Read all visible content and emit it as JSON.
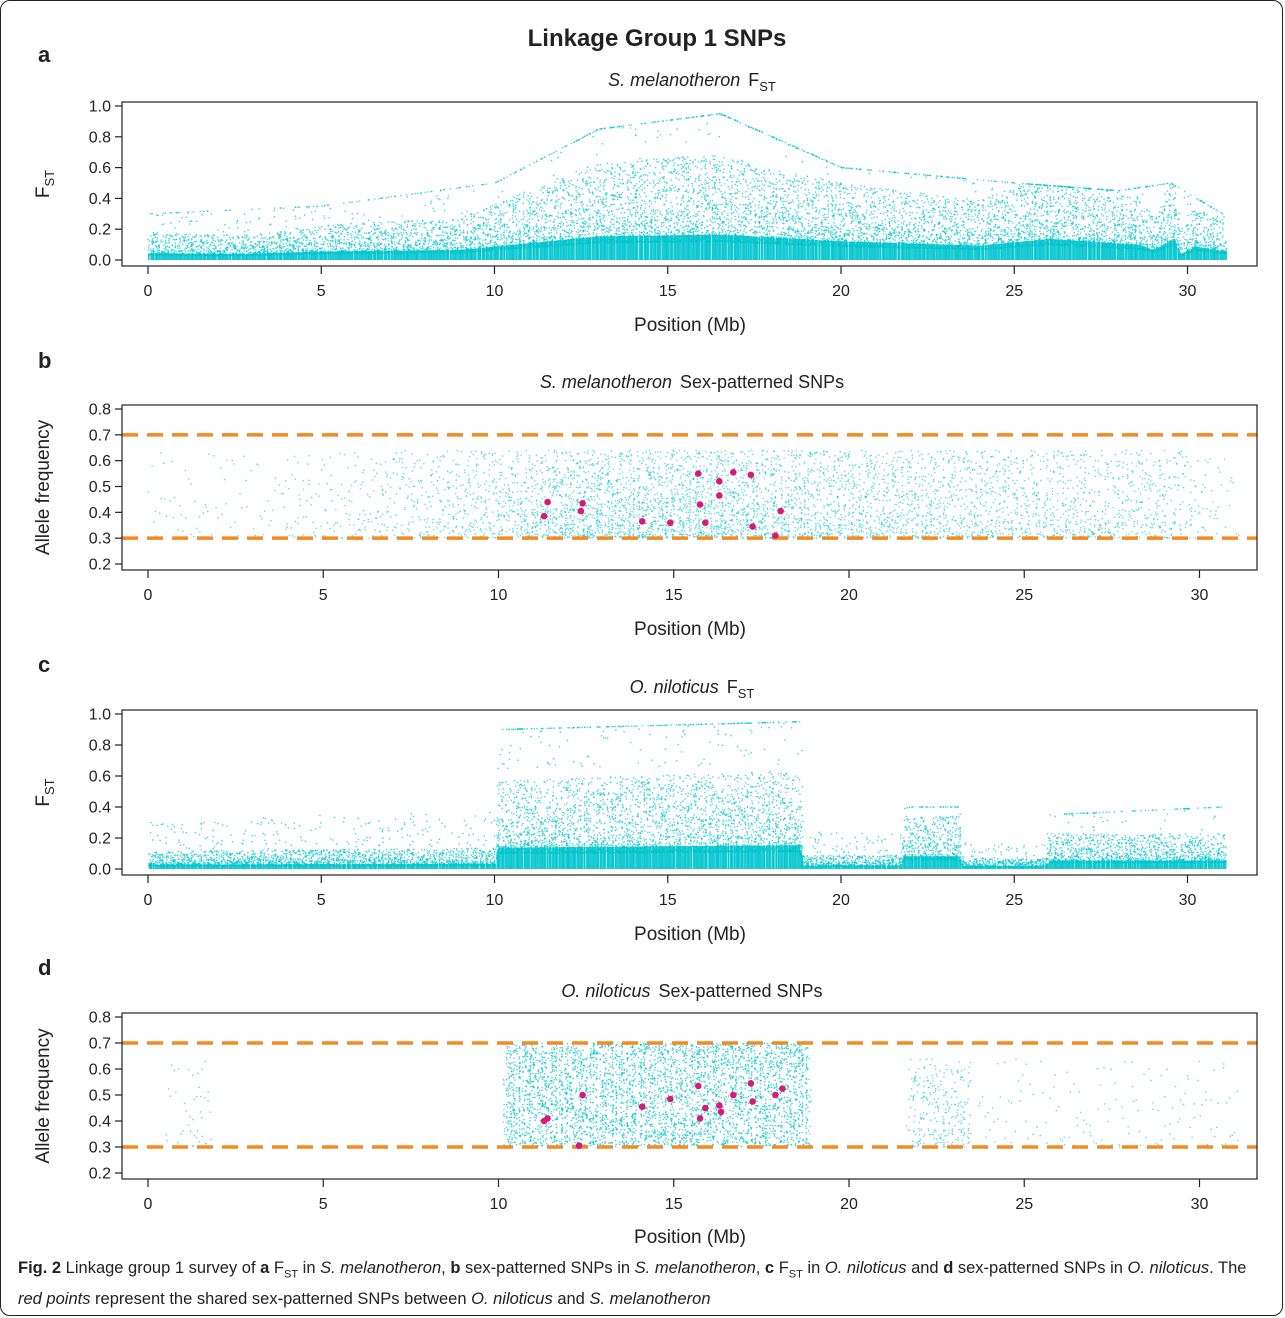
{
  "figure_title": "Linkage Group 1 SNPs",
  "caption": {
    "label": "Fig. 2",
    "parts": [
      {
        "t": " Linkage group 1 survey of "
      },
      {
        "t": "a",
        "b": true
      },
      {
        "t": " F"
      },
      {
        "t": "ST",
        "sub": true
      },
      {
        "t": " in "
      },
      {
        "t": "S. melanotheron",
        "i": true
      },
      {
        "t": ", "
      },
      {
        "t": "b",
        "b": true
      },
      {
        "t": " sex-patterned SNPs in "
      },
      {
        "t": "S. melanotheron",
        "i": true
      },
      {
        "t": ", "
      },
      {
        "t": "c",
        "b": true
      },
      {
        "t": " F"
      },
      {
        "t": "ST",
        "sub": true
      },
      {
        "t": " in "
      },
      {
        "t": "O. niloticus",
        "i": true
      },
      {
        "t": " and "
      },
      {
        "t": "d",
        "b": true
      },
      {
        "t": " sex-patterned SNPs in "
      },
      {
        "t": "O. niloticus",
        "i": true
      },
      {
        "t": ". The "
      },
      {
        "t": "red points",
        "i": true
      },
      {
        "t": " represent the shared sex-patterned SNPs between "
      },
      {
        "t": "O. niloticus",
        "i": true
      },
      {
        "t": " and "
      },
      {
        "t": "S. melanotheron",
        "i": true
      }
    ]
  },
  "colors": {
    "points": "#00c5cd",
    "shared": "#d6197a",
    "threshold": "#f58a1f",
    "axis": "#222222"
  },
  "chart_data": [
    {
      "panel": "a",
      "type": "scatter",
      "title_species": "S. melanotheron",
      "title_stat": "F",
      "title_stat_sub": "ST",
      "xlabel": "Position (Mb)",
      "ylabel": "F",
      "ylabel_sub": "ST",
      "xlim": [
        0,
        31.2
      ],
      "ylim": [
        0,
        1.0
      ],
      "xticks": [
        0,
        5,
        10,
        15,
        20,
        25,
        30
      ],
      "yticks": [
        0.0,
        0.2,
        0.4,
        0.6,
        0.8,
        1.0
      ],
      "ytick_labels": [
        "0.0",
        "0.2",
        "0.4",
        "0.6",
        "0.8",
        "1.0"
      ],
      "dense_points": {
        "profile": [
          [
            0,
            0.08
          ],
          [
            2.7,
            0.07
          ],
          [
            5,
            0.1
          ],
          [
            9,
            0.12
          ],
          [
            11,
            0.2
          ],
          [
            13,
            0.28
          ],
          [
            16.5,
            0.3
          ],
          [
            20,
            0.22
          ],
          [
            24,
            0.17
          ],
          [
            26,
            0.25
          ],
          [
            28.6,
            0.18
          ],
          [
            29,
            0.12
          ],
          [
            29.6,
            0.25
          ],
          [
            29.8,
            0.06
          ],
          [
            30.2,
            0.16
          ],
          [
            31.1,
            0.1
          ]
        ],
        "max_extent": [
          [
            0,
            0.3
          ],
          [
            5,
            0.35
          ],
          [
            10,
            0.5
          ],
          [
            13,
            0.85
          ],
          [
            16.5,
            0.95
          ],
          [
            20,
            0.6
          ],
          [
            25,
            0.5
          ],
          [
            28,
            0.45
          ],
          [
            29.5,
            0.5
          ],
          [
            31,
            0.3
          ]
        ]
      }
    },
    {
      "panel": "b",
      "type": "scatter",
      "title_species": "S. melanotheron",
      "title_stat": "Sex-patterned SNPs",
      "xlabel": "Position (Mb)",
      "ylabel": "Allele frequency",
      "xlim": [
        0,
        31.2
      ],
      "ylim": [
        0.2,
        0.8
      ],
      "xticks": [
        0,
        5,
        10,
        15,
        20,
        25,
        30
      ],
      "yticks": [
        0.2,
        0.3,
        0.4,
        0.5,
        0.6,
        0.7,
        0.8
      ],
      "ytick_labels": [
        "0.2",
        "0.3",
        "0.4",
        "0.5",
        "0.6",
        "0.7",
        "0.8"
      ],
      "thresholds": [
        0.3,
        0.7
      ],
      "dense_points": {
        "density_by_position": [
          [
            0,
            0.03
          ],
          [
            5,
            0.08
          ],
          [
            7,
            0.18
          ],
          [
            10,
            0.35
          ],
          [
            12,
            0.7
          ],
          [
            16,
            0.75
          ],
          [
            19,
            0.55
          ],
          [
            24,
            0.4
          ],
          [
            29,
            0.3
          ],
          [
            30.3,
            0.08
          ],
          [
            31,
            0.05
          ]
        ],
        "value_range": [
          0.3,
          0.7
        ]
      },
      "shared_points": [
        [
          11.4,
          0.44
        ],
        [
          11.3,
          0.385
        ],
        [
          12.4,
          0.435
        ],
        [
          12.35,
          0.405
        ],
        [
          14.1,
          0.365
        ],
        [
          14.9,
          0.36
        ],
        [
          15.7,
          0.55
        ],
        [
          15.75,
          0.43
        ],
        [
          15.9,
          0.36
        ],
        [
          16.3,
          0.52
        ],
        [
          16.3,
          0.465
        ],
        [
          16.7,
          0.555
        ],
        [
          17.2,
          0.545
        ],
        [
          17.25,
          0.345
        ],
        [
          17.9,
          0.31
        ],
        [
          18.05,
          0.405
        ]
      ]
    },
    {
      "panel": "c",
      "type": "scatter",
      "title_species": "O. niloticus",
      "title_stat": "F",
      "title_stat_sub": "ST",
      "xlabel": "Position (Mb)",
      "ylabel": "F",
      "ylabel_sub": "ST",
      "xlim": [
        0,
        31.2
      ],
      "ylim": [
        0,
        1.0
      ],
      "xticks": [
        0,
        5,
        10,
        15,
        20,
        25,
        30
      ],
      "yticks": [
        0.0,
        0.2,
        0.4,
        0.6,
        0.8,
        1.0
      ],
      "ytick_labels": [
        "0.0",
        "0.2",
        "0.4",
        "0.6",
        "0.8",
        "1.0"
      ],
      "dense_points": {
        "profile": [
          [
            0,
            0.05
          ],
          [
            10,
            0.06
          ],
          [
            10.1,
            0.25
          ],
          [
            18.8,
            0.28
          ],
          [
            18.9,
            0.04
          ],
          [
            21.7,
            0.04
          ],
          [
            21.8,
            0.15
          ],
          [
            23.4,
            0.15
          ],
          [
            23.5,
            0.03
          ],
          [
            25.9,
            0.03
          ],
          [
            26,
            0.1
          ],
          [
            31.1,
            0.1
          ]
        ],
        "max_extent": [
          [
            0,
            0.3
          ],
          [
            10,
            0.4
          ],
          [
            10.2,
            0.9
          ],
          [
            18.8,
            0.95
          ],
          [
            19,
            0.25
          ],
          [
            22,
            0.4
          ],
          [
            23.5,
            0.4
          ],
          [
            24,
            0.1
          ],
          [
            26,
            0.35
          ],
          [
            31,
            0.4
          ]
        ]
      }
    },
    {
      "panel": "d",
      "type": "scatter",
      "title_species": "O. niloticus",
      "title_stat": "Sex-patterned SNPs",
      "xlabel": "Position (Mb)",
      "ylabel": "Allele frequency",
      "xlim": [
        0,
        31.2
      ],
      "ylim": [
        0.2,
        0.8
      ],
      "xticks": [
        0,
        5,
        10,
        15,
        20,
        25,
        30
      ],
      "yticks": [
        0.2,
        0.3,
        0.4,
        0.5,
        0.6,
        0.7,
        0.8
      ],
      "ytick_labels": [
        "0.2",
        "0.3",
        "0.4",
        "0.5",
        "0.6",
        "0.7",
        "0.8"
      ],
      "thresholds": [
        0.3,
        0.7
      ],
      "dense_points": {
        "density_by_position": [
          [
            0,
            0.0
          ],
          [
            1,
            0.05
          ],
          [
            1.5,
            0.15
          ],
          [
            1.8,
            0.02
          ],
          [
            10.1,
            0.02
          ],
          [
            10.2,
            1.0
          ],
          [
            18.8,
            1.0
          ],
          [
            18.9,
            0.02
          ],
          [
            21.6,
            0.02
          ],
          [
            21.8,
            0.35
          ],
          [
            23.4,
            0.35
          ],
          [
            23.5,
            0.02
          ],
          [
            26,
            0.06
          ],
          [
            31,
            0.04
          ]
        ],
        "value_range": [
          0.3,
          0.7
        ]
      },
      "shared_points": [
        [
          11.3,
          0.4
        ],
        [
          11.4,
          0.41
        ],
        [
          12.3,
          0.305
        ],
        [
          12.4,
          0.5
        ],
        [
          14.1,
          0.455
        ],
        [
          14.9,
          0.485
        ],
        [
          15.7,
          0.535
        ],
        [
          15.75,
          0.41
        ],
        [
          15.9,
          0.45
        ],
        [
          16.3,
          0.46
        ],
        [
          16.35,
          0.435
        ],
        [
          16.7,
          0.5
        ],
        [
          17.2,
          0.545
        ],
        [
          17.25,
          0.475
        ],
        [
          17.9,
          0.5
        ],
        [
          18.1,
          0.525
        ]
      ]
    }
  ]
}
